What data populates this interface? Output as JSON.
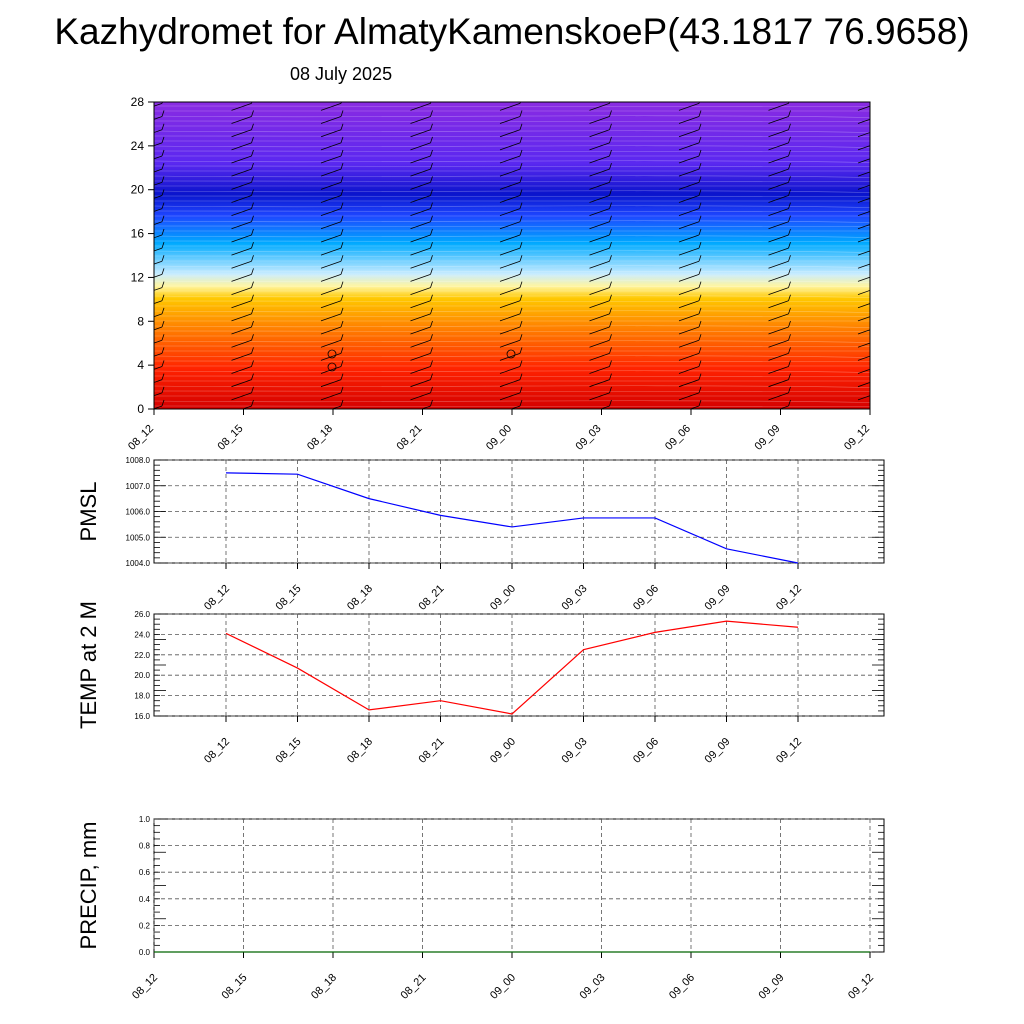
{
  "header": {
    "title": "Kazhydromet for AlmatyKamenskoeP(43.1817 76.9658)",
    "subtitle": "08 July 2025"
  },
  "chart_data": [
    {
      "id": "cross_section",
      "type": "heatmap",
      "description_of_fill": "filled contours with wind barbs",
      "x_ticks": [
        "08_12",
        "08_15",
        "08_18",
        "08_21",
        "09_00",
        "09_03",
        "09_06",
        "09_09",
        "09_12"
      ],
      "y_ticks": [
        0,
        4,
        8,
        12,
        16,
        20,
        24,
        28
      ],
      "ylim": [
        0,
        28
      ],
      "colors": [
        "#d40000",
        "#ff2200",
        "#ff8c00",
        "#ffc800",
        "#fff5a0",
        "#c8ecff",
        "#00aaff",
        "#1e46ff",
        "#0a14cc",
        "#5a28f0",
        "#8a2be2"
      ]
    },
    {
      "id": "pmsl",
      "type": "line",
      "ylabel": "PMSL",
      "x": [
        "08_12",
        "08_15",
        "08_18",
        "08_21",
        "09_00",
        "09_03",
        "09_06",
        "09_09",
        "09_12"
      ],
      "values": [
        1007.5,
        1007.45,
        1006.5,
        1005.85,
        1005.4,
        1005.75,
        1005.75,
        1004.55,
        1004.0
      ],
      "ylim": [
        1004.0,
        1008.0
      ],
      "y_ticks": [
        "1004.0",
        "1005.0",
        "1006.0",
        "1007.0",
        "1008.0"
      ],
      "color": "#0000ff",
      "grid": true
    },
    {
      "id": "temp2m",
      "type": "line",
      "ylabel": "TEMP at 2 M",
      "x": [
        "08_12",
        "08_15",
        "08_18",
        "08_21",
        "09_00",
        "09_03",
        "09_06",
        "09_09",
        "09_12"
      ],
      "values": [
        24.1,
        20.7,
        16.6,
        17.5,
        16.2,
        22.5,
        24.2,
        25.3,
        24.7
      ],
      "ylim": [
        16.0,
        26.0
      ],
      "y_ticks": [
        "16.0",
        "18.0",
        "20.0",
        "22.0",
        "24.0",
        "26.0"
      ],
      "color": "#ff0000",
      "grid": true
    },
    {
      "id": "precip",
      "type": "line",
      "ylabel": "PRECIP, mm",
      "x": [
        "08_12",
        "08_15",
        "08_18",
        "08_21",
        "09_00",
        "09_03",
        "09_06",
        "09_09",
        "09_12"
      ],
      "values": [
        0,
        0,
        0,
        0,
        0,
        0,
        0,
        0,
        0
      ],
      "ylim": [
        0.0,
        1.0
      ],
      "y_ticks": [
        "0.0",
        "0.2",
        "0.4",
        "0.6",
        "0.8",
        "1.0"
      ],
      "color": "#006400",
      "grid": true
    }
  ]
}
